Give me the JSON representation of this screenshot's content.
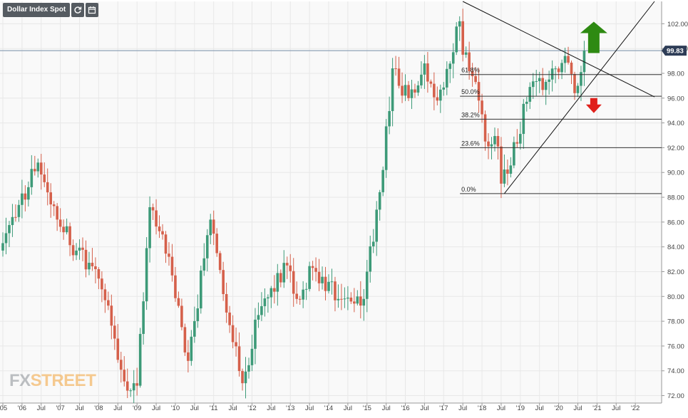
{
  "toolbar": {
    "title": "Dollar Index Spot",
    "refresh_icon": "refresh-icon",
    "calendar_icon": "calendar-icon"
  },
  "logo": {
    "part1": "FX",
    "part2": "STREET"
  },
  "colors": {
    "up": "#3d9a78",
    "down": "#d5604b",
    "price_tag": "#2e3d57",
    "price_line": "#8fa2b8",
    "fib_line": "#333333",
    "arrow_up": "#2e8a12",
    "arrow_down": "#e0201b",
    "grid": "#e8e8e8",
    "axis_text": "#444444"
  },
  "chart_data": {
    "type": "candlestick",
    "title": "Dollar Index Spot",
    "interval": "monthly",
    "ylim": [
      71.4,
      103.8
    ],
    "y_ticks": [
      "72.00",
      "74.00",
      "76.00",
      "78.00",
      "80.00",
      "82.00",
      "84.00",
      "86.00",
      "88.00",
      "90.00",
      "92.00",
      "94.00",
      "96.00",
      "98.00",
      "100.00",
      "102.00"
    ],
    "x_ticks": [
      "'05",
      "'06",
      "Jul",
      "'07",
      "Jul",
      "'08",
      "Jul",
      "'09",
      "Jul",
      "'10",
      "Jul",
      "'11",
      "Jul",
      "'12",
      "Jul",
      "'13",
      "Jul",
      "'14",
      "Jul",
      "'15",
      "Jul",
      "'16",
      "Jul",
      "'17",
      "Jul",
      "'18",
      "Jul",
      "'19",
      "Jul",
      "'20",
      "Jul",
      "'21",
      "Jul",
      "'22"
    ],
    "x_start": "2005-01",
    "x_end": "2022-01",
    "last_price": "99.83",
    "last_value": 99.83,
    "grid": true,
    "fibonacci": {
      "levels": [
        {
          "label": "61.8%",
          "value": 97.9
        },
        {
          "label": "50.0%",
          "value": 96.15
        },
        {
          "label": "38.2%",
          "value": 94.3
        },
        {
          "label": "23.6%",
          "value": 92.0
        },
        {
          "label": "0.0%",
          "value": 88.3
        }
      ],
      "start": "2017-01"
    },
    "trendlines": [
      {
        "name": "descending",
        "from": [
          "2017-01",
          103.8
        ],
        "to": [
          "2022-01",
          96.1
        ]
      },
      {
        "name": "ascending",
        "from": [
          "2018-02",
          88.3
        ],
        "to": [
          "2022-01",
          103.8
        ]
      }
    ],
    "arrows": [
      {
        "direction": "up",
        "date": "2020-06",
        "value": 101.3
      },
      {
        "direction": "down",
        "date": "2020-06",
        "value": 95.2
      }
    ],
    "anchors": [
      [
        "2005-01",
        84.3
      ],
      [
        "2005-12",
        90.8
      ],
      [
        "2006-06",
        86.2
      ],
      [
        "2006-12",
        83.7
      ],
      [
        "2007-06",
        82.2
      ],
      [
        "2007-12",
        76.6
      ],
      [
        "2008-04",
        72.4
      ],
      [
        "2008-07",
        72.8
      ],
      [
        "2008-11",
        87.2
      ],
      [
        "2009-03",
        85.0
      ],
      [
        "2009-11",
        74.8
      ],
      [
        "2010-06",
        86.2
      ],
      [
        "2010-11",
        78.7
      ],
      [
        "2011-04",
        73.0
      ],
      [
        "2011-09",
        78.5
      ],
      [
        "2012-06",
        82.5
      ],
      [
        "2012-09",
        79.8
      ],
      [
        "2013-02",
        82.3
      ],
      [
        "2013-10",
        79.8
      ],
      [
        "2014-04",
        80.0
      ],
      [
        "2014-06",
        79.8
      ],
      [
        "2014-12",
        90.2
      ],
      [
        "2015-03",
        98.4
      ],
      [
        "2015-08",
        96.0
      ],
      [
        "2016-01",
        98.8
      ],
      [
        "2016-05",
        95.8
      ],
      [
        "2016-12",
        102.2
      ],
      [
        "2017-01",
        99.5
      ],
      [
        "2017-05",
        97.3
      ],
      [
        "2017-08",
        92.5
      ],
      [
        "2017-12",
        92.1
      ],
      [
        "2018-01",
        89.1
      ],
      [
        "2018-03",
        89.9
      ],
      [
        "2018-10",
        96.9
      ],
      [
        "2019-04",
        97.5
      ],
      [
        "2019-09",
        99.4
      ],
      [
        "2019-12",
        96.4
      ],
      [
        "2020-02",
        98.1
      ],
      [
        "2020-03",
        99.83
      ]
    ]
  }
}
